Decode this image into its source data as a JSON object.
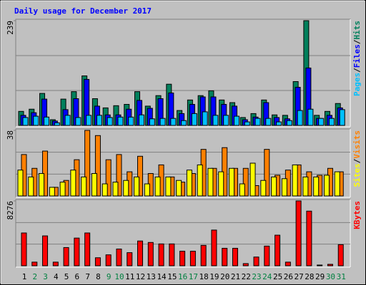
{
  "chart_data": [
    {
      "type": "bar",
      "title": "Daily usage for December 2017",
      "categories": [
        "1",
        "2",
        "3",
        "4",
        "5",
        "6",
        "7",
        "8",
        "9",
        "10",
        "11",
        "12",
        "13",
        "14",
        "15",
        "16",
        "17",
        "18",
        "19",
        "20",
        "21",
        "22",
        "23",
        "24",
        "25",
        "26",
        "27",
        "28",
        "29",
        "30",
        "31"
      ],
      "category_colors": [
        "#000000",
        "#008040",
        "#008040",
        "#000000",
        "#000000",
        "#000000",
        "#000000",
        "#000000",
        "#008040",
        "#008040",
        "#000000",
        "#000000",
        "#000000",
        "#000000",
        "#000000",
        "#008040",
        "#008040",
        "#000000",
        "#000000",
        "#000000",
        "#000000",
        "#000000",
        "#008040",
        "#008040",
        "#000000",
        "#000000",
        "#000000",
        "#000000",
        "#000000",
        "#008040",
        "#008040"
      ],
      "legend_separator": "/",
      "ylim": [
        0,
        239
      ],
      "yticks": [
        239
      ],
      "series": [
        {
          "name": "Hits",
          "color": "#00805c",
          "values": [
            32,
            37,
            73,
            13,
            60,
            77,
            113,
            61,
            40,
            45,
            48,
            77,
            44,
            68,
            94,
            34,
            58,
            68,
            79,
            58,
            52,
            18,
            27,
            58,
            24,
            23,
            100,
            239,
            23,
            32,
            50
          ]
        },
        {
          "name": "Files",
          "color": "#0000ff",
          "values": [
            23,
            29,
            60,
            10,
            36,
            61,
            105,
            44,
            24,
            24,
            37,
            57,
            39,
            61,
            74,
            27,
            48,
            65,
            65,
            48,
            44,
            13,
            19,
            52,
            18,
            15,
            87,
            131,
            16,
            23,
            40
          ]
        },
        {
          "name": "Pages",
          "color": "#00c0ff",
          "values": [
            18,
            21,
            19,
            6,
            23,
            18,
            23,
            23,
            18,
            19,
            19,
            24,
            15,
            16,
            16,
            11,
            27,
            31,
            23,
            23,
            21,
            8,
            16,
            16,
            8,
            11,
            34,
            37,
            16,
            16,
            36
          ]
        }
      ]
    },
    {
      "type": "bar",
      "ylim": [
        0,
        38
      ],
      "yticks": [
        38
      ],
      "series": [
        {
          "name": "Visits",
          "color": "#ff8000",
          "values": [
            24,
            16,
            26,
            5,
            9,
            21,
            38,
            35,
            21,
            24,
            14,
            23,
            13,
            18,
            11,
            8,
            13,
            27,
            16,
            28,
            16,
            16,
            6,
            27,
            12,
            15,
            18,
            14,
            12,
            16,
            14
          ]
        },
        {
          "name": "Sites",
          "color": "#ffff00",
          "values": [
            15,
            11,
            13,
            5,
            8,
            15,
            11,
            13,
            7,
            8,
            9,
            11,
            7,
            11,
            11,
            9,
            15,
            18,
            16,
            14,
            16,
            7,
            19,
            9,
            11,
            10,
            18,
            11,
            11,
            12,
            14
          ]
        }
      ]
    },
    {
      "type": "bar",
      "ylim": [
        0,
        8276
      ],
      "yticks": [
        8276
      ],
      "series": [
        {
          "name": "KBytes",
          "color": "#ff0000",
          "values": [
            4185,
            465,
            3813,
            465,
            2325,
            3534,
            4185,
            1023,
            1395,
            2139,
            1674,
            3162,
            2976,
            2790,
            2790,
            1860,
            1860,
            2604,
            4557,
            2232,
            2232,
            279,
            1116,
            2511,
            3906,
            465,
            8276,
            6975,
            93,
            186,
            2697
          ]
        }
      ]
    }
  ]
}
